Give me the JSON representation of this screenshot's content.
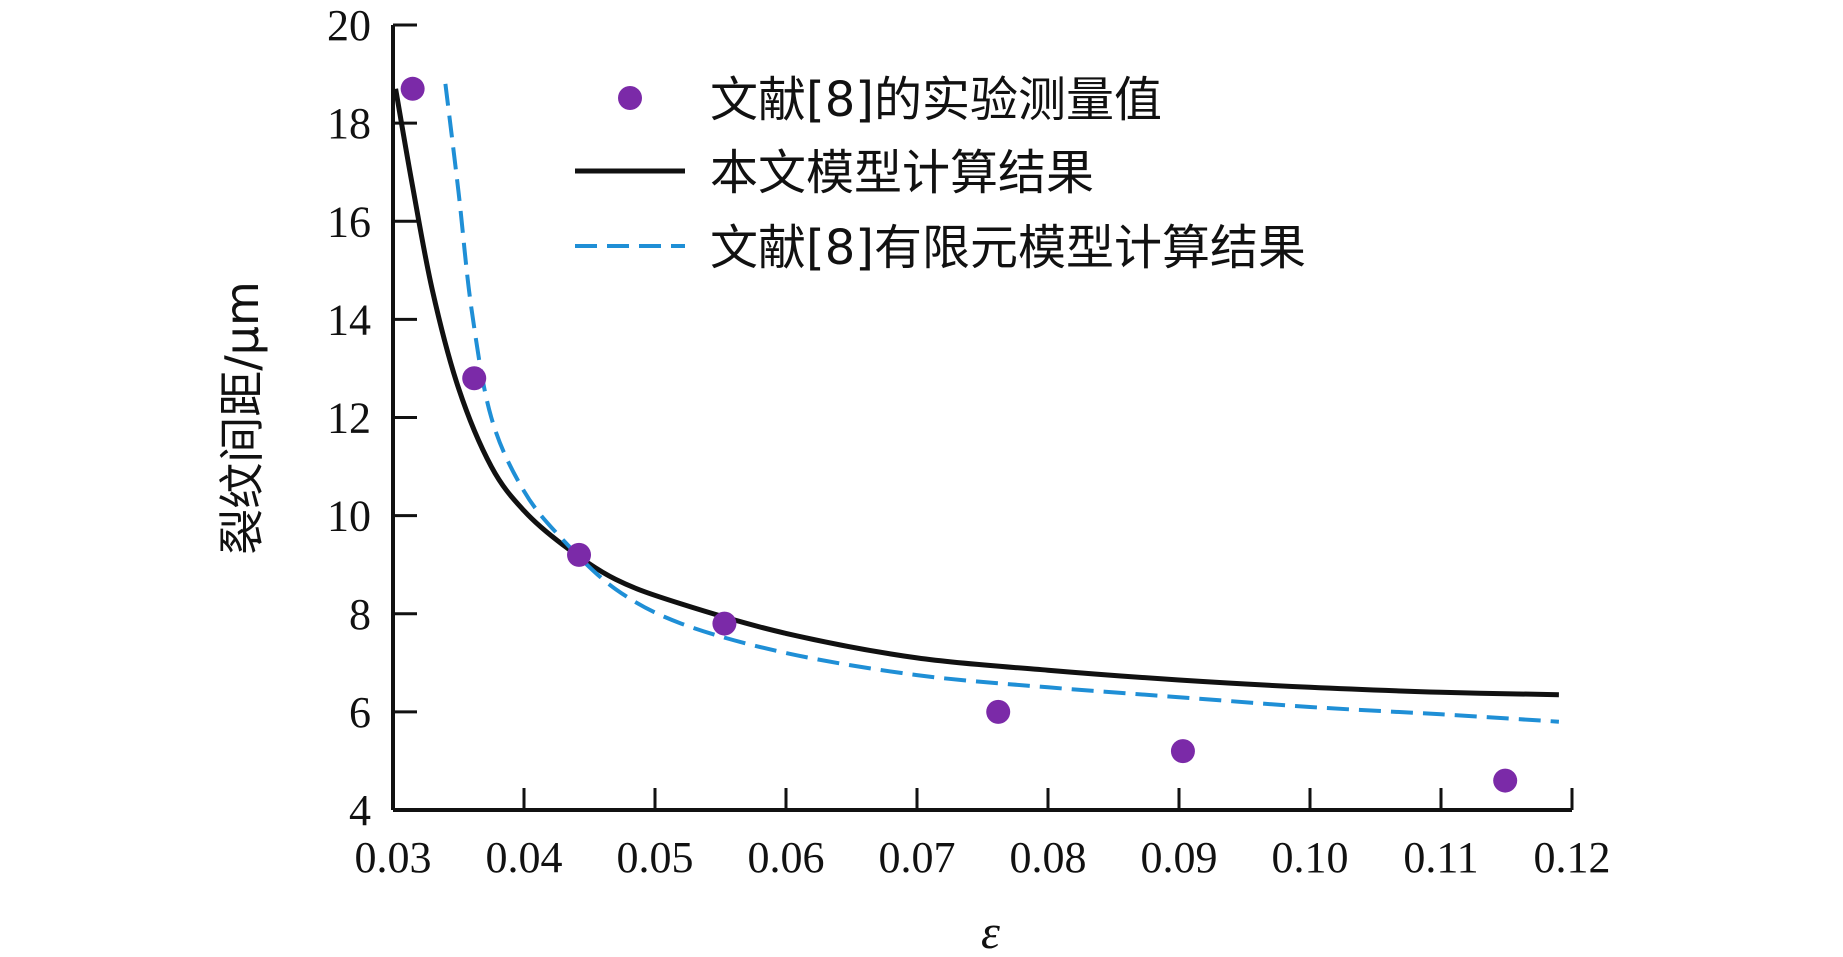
{
  "chart_data": {
    "type": "line",
    "xlabel": "ε",
    "ylabel": "裂纹间距/μm",
    "xlim": [
      0.03,
      0.12
    ],
    "ylim": [
      4,
      20
    ],
    "x_ticks": [
      "0.03",
      "0.04",
      "0.05",
      "0.06",
      "0.07",
      "0.08",
      "0.09",
      "0.10",
      "0.11",
      "0.12"
    ],
    "y_ticks": [
      "4",
      "6",
      "8",
      "10",
      "12",
      "14",
      "16",
      "18",
      "20"
    ],
    "legend_position": "top-right",
    "series": [
      {
        "name": "文献[8]的实验测量值",
        "kind": "scatter",
        "color": "#7b2aa8",
        "points": [
          {
            "x": 0.0315,
            "y": 18.7
          },
          {
            "x": 0.0362,
            "y": 12.8
          },
          {
            "x": 0.0442,
            "y": 9.2
          },
          {
            "x": 0.0553,
            "y": 7.8
          },
          {
            "x": 0.0762,
            "y": 6.0
          },
          {
            "x": 0.0903,
            "y": 5.2
          },
          {
            "x": 0.1149,
            "y": 4.6
          }
        ]
      },
      {
        "name": "本文模型计算结果",
        "kind": "line",
        "color": "#111111",
        "dash": "solid",
        "points": [
          {
            "x": 0.0302,
            "y": 18.7
          },
          {
            "x": 0.0315,
            "y": 16.7
          },
          {
            "x": 0.033,
            "y": 14.6
          },
          {
            "x": 0.035,
            "y": 12.6
          },
          {
            "x": 0.0375,
            "y": 11.0
          },
          {
            "x": 0.04,
            "y": 10.1
          },
          {
            "x": 0.043,
            "y": 9.4
          },
          {
            "x": 0.047,
            "y": 8.7
          },
          {
            "x": 0.052,
            "y": 8.2
          },
          {
            "x": 0.06,
            "y": 7.6
          },
          {
            "x": 0.07,
            "y": 7.1
          },
          {
            "x": 0.08,
            "y": 6.85
          },
          {
            "x": 0.09,
            "y": 6.65
          },
          {
            "x": 0.1,
            "y": 6.5
          },
          {
            "x": 0.11,
            "y": 6.4
          },
          {
            "x": 0.119,
            "y": 6.35
          }
        ]
      },
      {
        "name": "文献[8]有限元模型计算结果",
        "kind": "line",
        "color": "#1f8fd6",
        "dash": "dashed",
        "points": [
          {
            "x": 0.034,
            "y": 18.8
          },
          {
            "x": 0.035,
            "y": 16.6
          },
          {
            "x": 0.036,
            "y": 14.2
          },
          {
            "x": 0.0375,
            "y": 12.0
          },
          {
            "x": 0.04,
            "y": 10.5
          },
          {
            "x": 0.043,
            "y": 9.5
          },
          {
            "x": 0.047,
            "y": 8.5
          },
          {
            "x": 0.052,
            "y": 7.8
          },
          {
            "x": 0.06,
            "y": 7.2
          },
          {
            "x": 0.07,
            "y": 6.75
          },
          {
            "x": 0.08,
            "y": 6.5
          },
          {
            "x": 0.09,
            "y": 6.3
          },
          {
            "x": 0.1,
            "y": 6.1
          },
          {
            "x": 0.11,
            "y": 5.95
          },
          {
            "x": 0.119,
            "y": 5.8
          }
        ]
      }
    ]
  }
}
